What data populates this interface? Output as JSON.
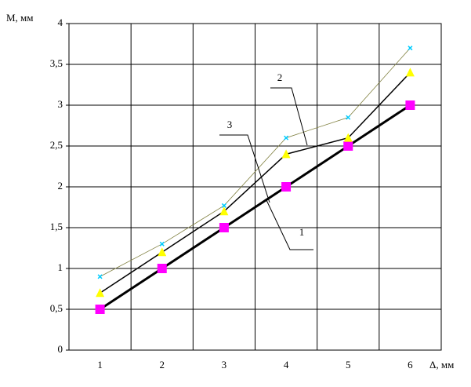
{
  "chart_data": {
    "type": "line",
    "x_label": "Δ, мм",
    "y_label": "M, мм",
    "categories": [
      "1",
      "2",
      "3",
      "4",
      "5",
      "6"
    ],
    "series": [
      {
        "name": "1",
        "color": "#000000",
        "marker": "square",
        "marker_color": "#ff00ff",
        "values": [
          0.5,
          1,
          1.5,
          2,
          2.5,
          3
        ]
      },
      {
        "name": "2",
        "color": "#000000",
        "marker": "triangle",
        "marker_color": "#ffff00",
        "values": [
          0.7,
          1.2,
          1.7,
          2.4,
          2.6,
          3.4
        ]
      },
      {
        "name": "3",
        "color": "#808040",
        "marker": "x",
        "marker_color": "#00ccff",
        "values": [
          0.9,
          1.3,
          1.77,
          2.6,
          2.85,
          3.7
        ]
      }
    ],
    "ylim": [
      0,
      4
    ],
    "yticks": [
      0,
      {
        "value": 0.5,
        "label": "0,5"
      },
      1,
      {
        "value": 1.5,
        "label": "1,5"
      },
      2,
      {
        "value": 2.5,
        "label": "2,5"
      },
      3,
      {
        "value": 3.5,
        "label": "3,5"
      },
      4
    ],
    "grid": true
  }
}
